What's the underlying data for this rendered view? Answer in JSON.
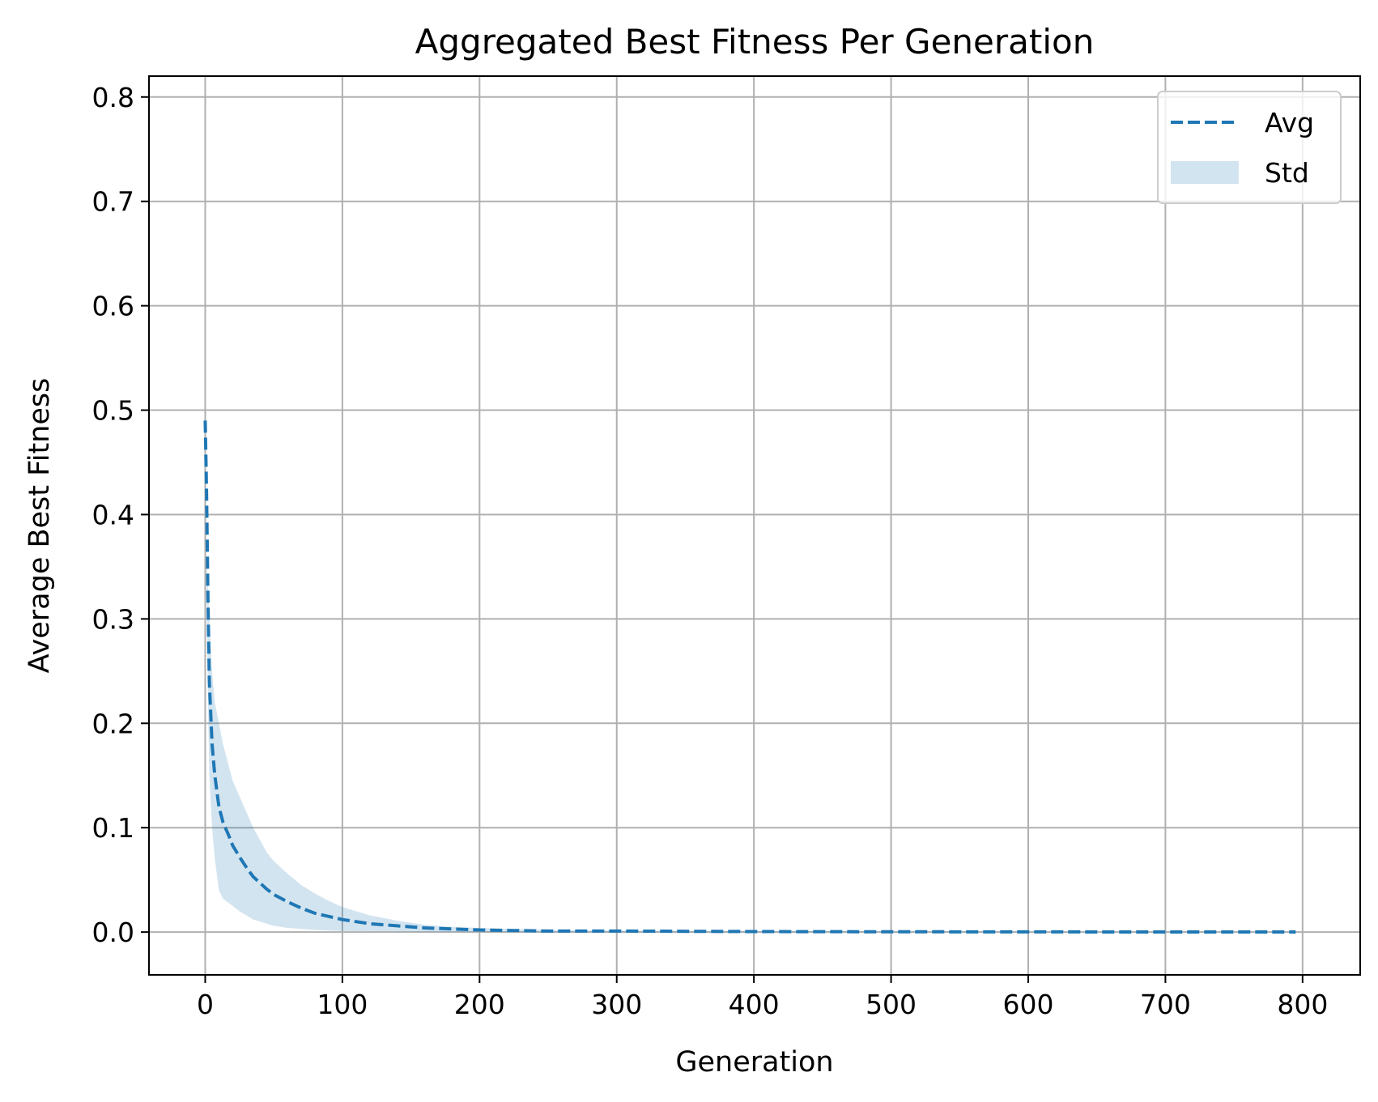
{
  "chart_data": {
    "type": "line",
    "title": "Aggregated Best Fitness Per Generation",
    "xlabel": "Generation",
    "ylabel": "Average Best Fitness",
    "xlim": [
      -41,
      842
    ],
    "ylim": [
      -0.041,
      0.82
    ],
    "xticks": [
      0,
      100,
      200,
      300,
      400,
      500,
      600,
      700,
      800
    ],
    "yticks": [
      0.0,
      0.1,
      0.2,
      0.3,
      0.4,
      0.5,
      0.6,
      0.7,
      0.8
    ],
    "xtick_labels": [
      "0",
      "100",
      "200",
      "300",
      "400",
      "500",
      "600",
      "700",
      "800"
    ],
    "ytick_labels": [
      "0.0",
      "0.1",
      "0.2",
      "0.3",
      "0.4",
      "0.5",
      "0.6",
      "0.7",
      "0.8"
    ],
    "grid": true,
    "legend": {
      "position": "top-right",
      "entries": [
        "Avg",
        "Std"
      ]
    },
    "series": [
      {
        "name": "Avg",
        "style": "dashed",
        "color": "#1f77b4",
        "x": [
          0,
          1,
          2,
          3,
          5,
          7,
          10,
          13,
          17,
          20,
          25,
          30,
          35,
          40,
          45,
          50,
          60,
          70,
          80,
          90,
          100,
          120,
          140,
          160,
          180,
          200,
          250,
          300,
          400,
          500,
          600,
          700,
          795
        ],
        "y": [
          0.49,
          0.42,
          0.32,
          0.24,
          0.18,
          0.15,
          0.12,
          0.105,
          0.093,
          0.083,
          0.072,
          0.062,
          0.053,
          0.047,
          0.041,
          0.036,
          0.029,
          0.023,
          0.018,
          0.015,
          0.012,
          0.008,
          0.006,
          0.004,
          0.003,
          0.002,
          0.001,
          0.001,
          0.0005,
          0.0003,
          0.0002,
          0.0001,
          0.0001
        ]
      },
      {
        "name": "Std",
        "type": "band",
        "color": "#1f77b4",
        "opacity": 0.2,
        "x": [
          0,
          1,
          2,
          3,
          5,
          7,
          10,
          13,
          17,
          20,
          25,
          30,
          35,
          40,
          45,
          50,
          60,
          70,
          80,
          90,
          100,
          120,
          140,
          160,
          180,
          200,
          250,
          300,
          400,
          500,
          600,
          700,
          795
        ],
        "lower": [
          0.49,
          0.35,
          0.22,
          0.15,
          0.1,
          0.07,
          0.04,
          0.032,
          0.028,
          0.025,
          0.02,
          0.016,
          0.012,
          0.01,
          0.008,
          0.006,
          0.004,
          0.003,
          0.002,
          0.0015,
          0.001,
          0.0008,
          0.0005,
          0.0003,
          0.0002,
          0.0001,
          0.0,
          0.0,
          0.0,
          0.0,
          0.0,
          0.0,
          0.0
        ],
        "upper": [
          0.49,
          0.36,
          0.33,
          0.3,
          0.25,
          0.22,
          0.2,
          0.18,
          0.16,
          0.145,
          0.13,
          0.115,
          0.1,
          0.088,
          0.076,
          0.068,
          0.056,
          0.045,
          0.037,
          0.03,
          0.024,
          0.016,
          0.011,
          0.007,
          0.005,
          0.004,
          0.002,
          0.0015,
          0.001,
          0.0007,
          0.0005,
          0.0003,
          0.0003
        ]
      }
    ]
  }
}
